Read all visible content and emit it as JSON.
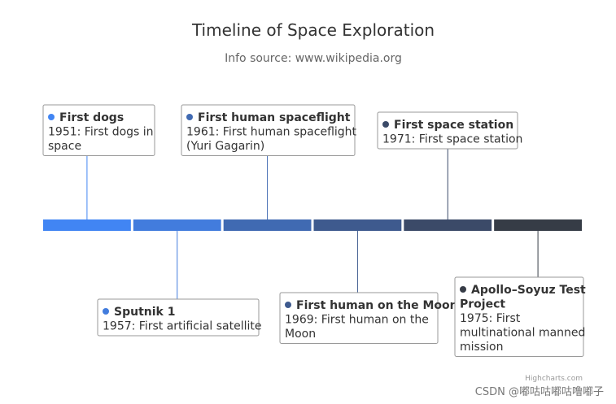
{
  "chart_data": {
    "type": "timeline",
    "title": "Timeline of Space Exploration",
    "subtitle": "Info source: www.wikipedia.org",
    "colors": [
      "#4185F3",
      "#427CDD",
      "#406AB2",
      "#3E5A8E",
      "#3B4A68",
      "#363C46"
    ],
    "events": [
      {
        "name": "First dogs",
        "description": "1951: First dogs in space",
        "lines": [
          "1951: First dogs in",
          "space"
        ]
      },
      {
        "name": "Sputnik 1",
        "description": "1957: First artificial satellite",
        "lines": [
          "1957: First artificial satellite"
        ]
      },
      {
        "name": "First human spaceflight",
        "description": "1961: First human spaceflight (Yuri Gagarin)",
        "lines": [
          "1961: First human spaceflight",
          "(Yuri Gagarin)"
        ]
      },
      {
        "name": "First human on the Moon",
        "description": "1969: First human on the Moon",
        "lines": [
          "1969: First human on the",
          "Moon"
        ]
      },
      {
        "name": "First space station",
        "description": "1971: First space station",
        "lines": [
          "1971: First space station"
        ]
      },
      {
        "name": "Apollo–Soyuz Test Project",
        "name_lines": [
          "Apollo–Soyuz Test",
          "Project"
        ],
        "description": "1975: First multinational manned mission",
        "lines": [
          "1975: First",
          "multinational manned",
          "mission"
        ]
      }
    ]
  },
  "credits": "Highcharts.com",
  "watermark": "CSDN @嘟咕咕嘟咕噜嘟子"
}
